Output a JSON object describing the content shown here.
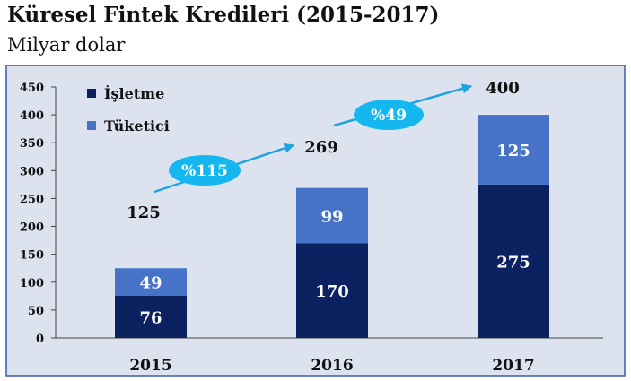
{
  "title": "Küresel Fintek Kredileri (2015-2017)",
  "subtitle": "Milyar dolar",
  "colors": {
    "panel_background": "#dde2ef",
    "panel_border": "#3a5aa8",
    "isletme": "#0b2160",
    "tuketici": "#4673c8",
    "arrow": "#1ca3e0",
    "bubble": "#14b7ef",
    "segment_label": "#ffffff"
  },
  "chart_data": {
    "type": "bar",
    "stacked": true,
    "categories": [
      "2015",
      "2016",
      "2017"
    ],
    "series": [
      {
        "name": "İşletme",
        "values": [
          76,
          170,
          275
        ]
      },
      {
        "name": "Tüketici",
        "values": [
          49,
          99,
          125
        ]
      }
    ],
    "totals": [
      125,
      269,
      400
    ],
    "growth_annotations": [
      {
        "from": "2015",
        "to": "2016",
        "label": "%115"
      },
      {
        "from": "2016",
        "to": "2017",
        "label": "%49"
      }
    ],
    "ylim": [
      0,
      450
    ],
    "y_ticks": [
      0,
      50,
      100,
      150,
      200,
      250,
      300,
      350,
      400,
      450
    ],
    "grid": false,
    "legend_position": "top-left",
    "xlabel": "",
    "ylabel": ""
  }
}
